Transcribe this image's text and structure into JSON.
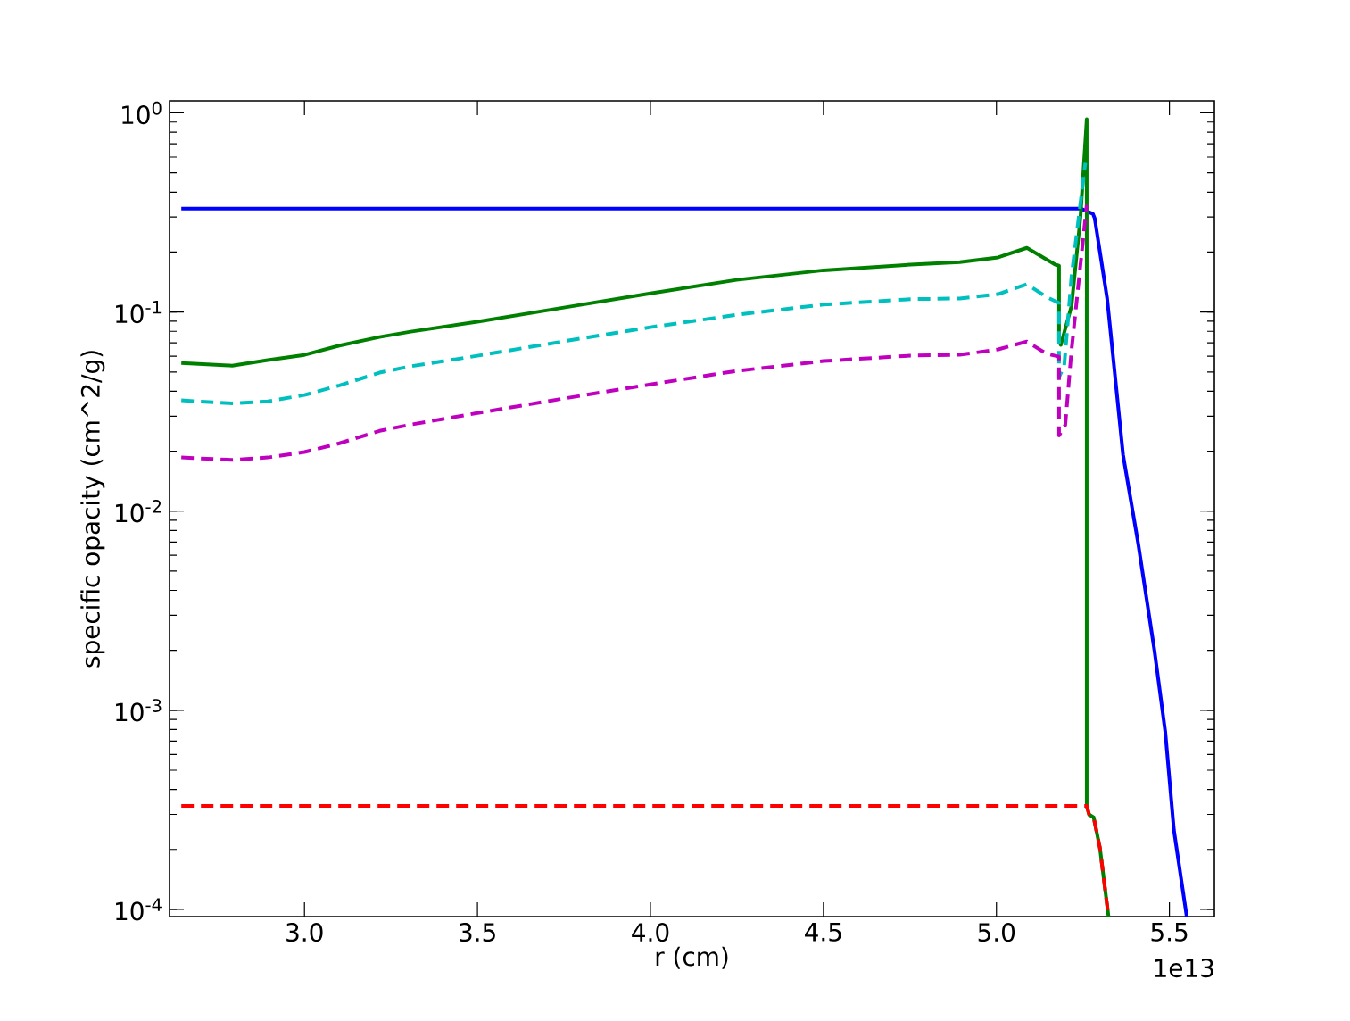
{
  "chart_data": {
    "type": "line",
    "xlabel": "r (cm)",
    "ylabel": "specific opacity (cm^2/g)",
    "annotations": [
      "1e13"
    ],
    "log": "y",
    "xlim": [
      2.61,
      5.63
    ],
    "ylim": [
      9.2e-05,
      1.15
    ],
    "xticks": [
      {
        "value": 3,
        "label": "3.0"
      },
      {
        "value": 3.5,
        "label": "3.5"
      },
      {
        "value": 4,
        "label": "4.0"
      },
      {
        "value": 4.5,
        "label": "4.5"
      },
      {
        "value": 5,
        "label": "5.0"
      },
      {
        "value": 5.5,
        "label": "5.5"
      }
    ],
    "yticks": [
      {
        "value": 0.0001,
        "label": "10$^{-4}$"
      },
      {
        "value": 0.001,
        "label": "10$^{-3}$"
      },
      {
        "value": 0.01,
        "label": "10$^{-2}$"
      },
      {
        "value": 0.1,
        "label": "10$^{-1}$"
      },
      {
        "value": 1,
        "label": "10$^{0}$"
      }
    ],
    "series": [
      {
        "color": "#0000ff",
        "line_style": "solid",
        "x": [
          2.644,
          5.243,
          5.279,
          5.284,
          5.32,
          5.366,
          5.41,
          5.457,
          5.488,
          5.513,
          5.55
        ],
        "values": [
          0.331,
          0.331,
          0.311,
          0.296,
          0.117,
          0.0192,
          0.00683,
          0.00198,
          0.00078,
          0.00025,
          9.2e-05
        ]
      },
      {
        "color": "#00bfbf",
        "line_style": "dashed",
        "x": [
          2.644,
          2.791,
          2.894,
          3.0,
          3.101,
          3.217,
          3.307,
          3.5,
          3.746,
          4.0,
          4.249,
          4.5,
          4.752,
          4.894,
          5.005,
          5.088,
          5.145,
          5.181,
          5.181,
          5.196,
          5.217,
          5.257
        ],
        "values": [
          0.036,
          0.0348,
          0.0356,
          0.0383,
          0.0428,
          0.0496,
          0.0534,
          0.0603,
          0.0711,
          0.0839,
          0.0969,
          0.109,
          0.116,
          0.117,
          0.123,
          0.138,
          0.119,
          0.111,
          0.0471,
          0.0539,
          0.151,
          0.561
        ]
      },
      {
        "color": "#bf00bf",
        "line_style": "dashed",
        "x": [
          2.644,
          2.791,
          2.894,
          3.0,
          3.101,
          3.217,
          3.307,
          3.5,
          3.746,
          4.0,
          4.249,
          4.5,
          4.752,
          4.894,
          5.005,
          5.088,
          5.145,
          5.181,
          5.181,
          5.199,
          5.217,
          5.261
        ],
        "values": [
          0.0186,
          0.0181,
          0.0186,
          0.0198,
          0.0219,
          0.0253,
          0.0272,
          0.0311,
          0.0367,
          0.0433,
          0.0506,
          0.0567,
          0.0604,
          0.061,
          0.0649,
          0.0711,
          0.0617,
          0.0597,
          0.024,
          0.0271,
          0.0642,
          0.345
        ]
      },
      {
        "color": "#008000",
        "line_style": "solid",
        "x": [
          2.644,
          2.791,
          2.894,
          3.0,
          3.101,
          3.217,
          3.307,
          3.5,
          3.746,
          4.0,
          4.249,
          4.5,
          4.752,
          4.894,
          5.005,
          5.088,
          5.17,
          5.181,
          5.181,
          5.186,
          5.217,
          5.243,
          5.261,
          5.261,
          5.268,
          5.281,
          5.299,
          5.324
        ],
        "values": [
          0.0555,
          0.0538,
          0.0573,
          0.0609,
          0.0678,
          0.0749,
          0.0797,
          0.0893,
          0.105,
          0.124,
          0.145,
          0.162,
          0.173,
          0.178,
          0.188,
          0.21,
          0.173,
          0.171,
          0.0711,
          0.0684,
          0.107,
          0.302,
          0.93,
          0.000331,
          0.000299,
          0.00029,
          0.000204,
          9.2e-05
        ]
      },
      {
        "color": "#ff0000",
        "line_style": "dashed",
        "x": [
          2.644,
          5.261,
          5.268,
          5.281,
          5.299,
          5.324
        ],
        "values": [
          0.000331,
          0.000331,
          0.000299,
          0.00029,
          0.000204,
          9.2e-05
        ]
      }
    ]
  }
}
